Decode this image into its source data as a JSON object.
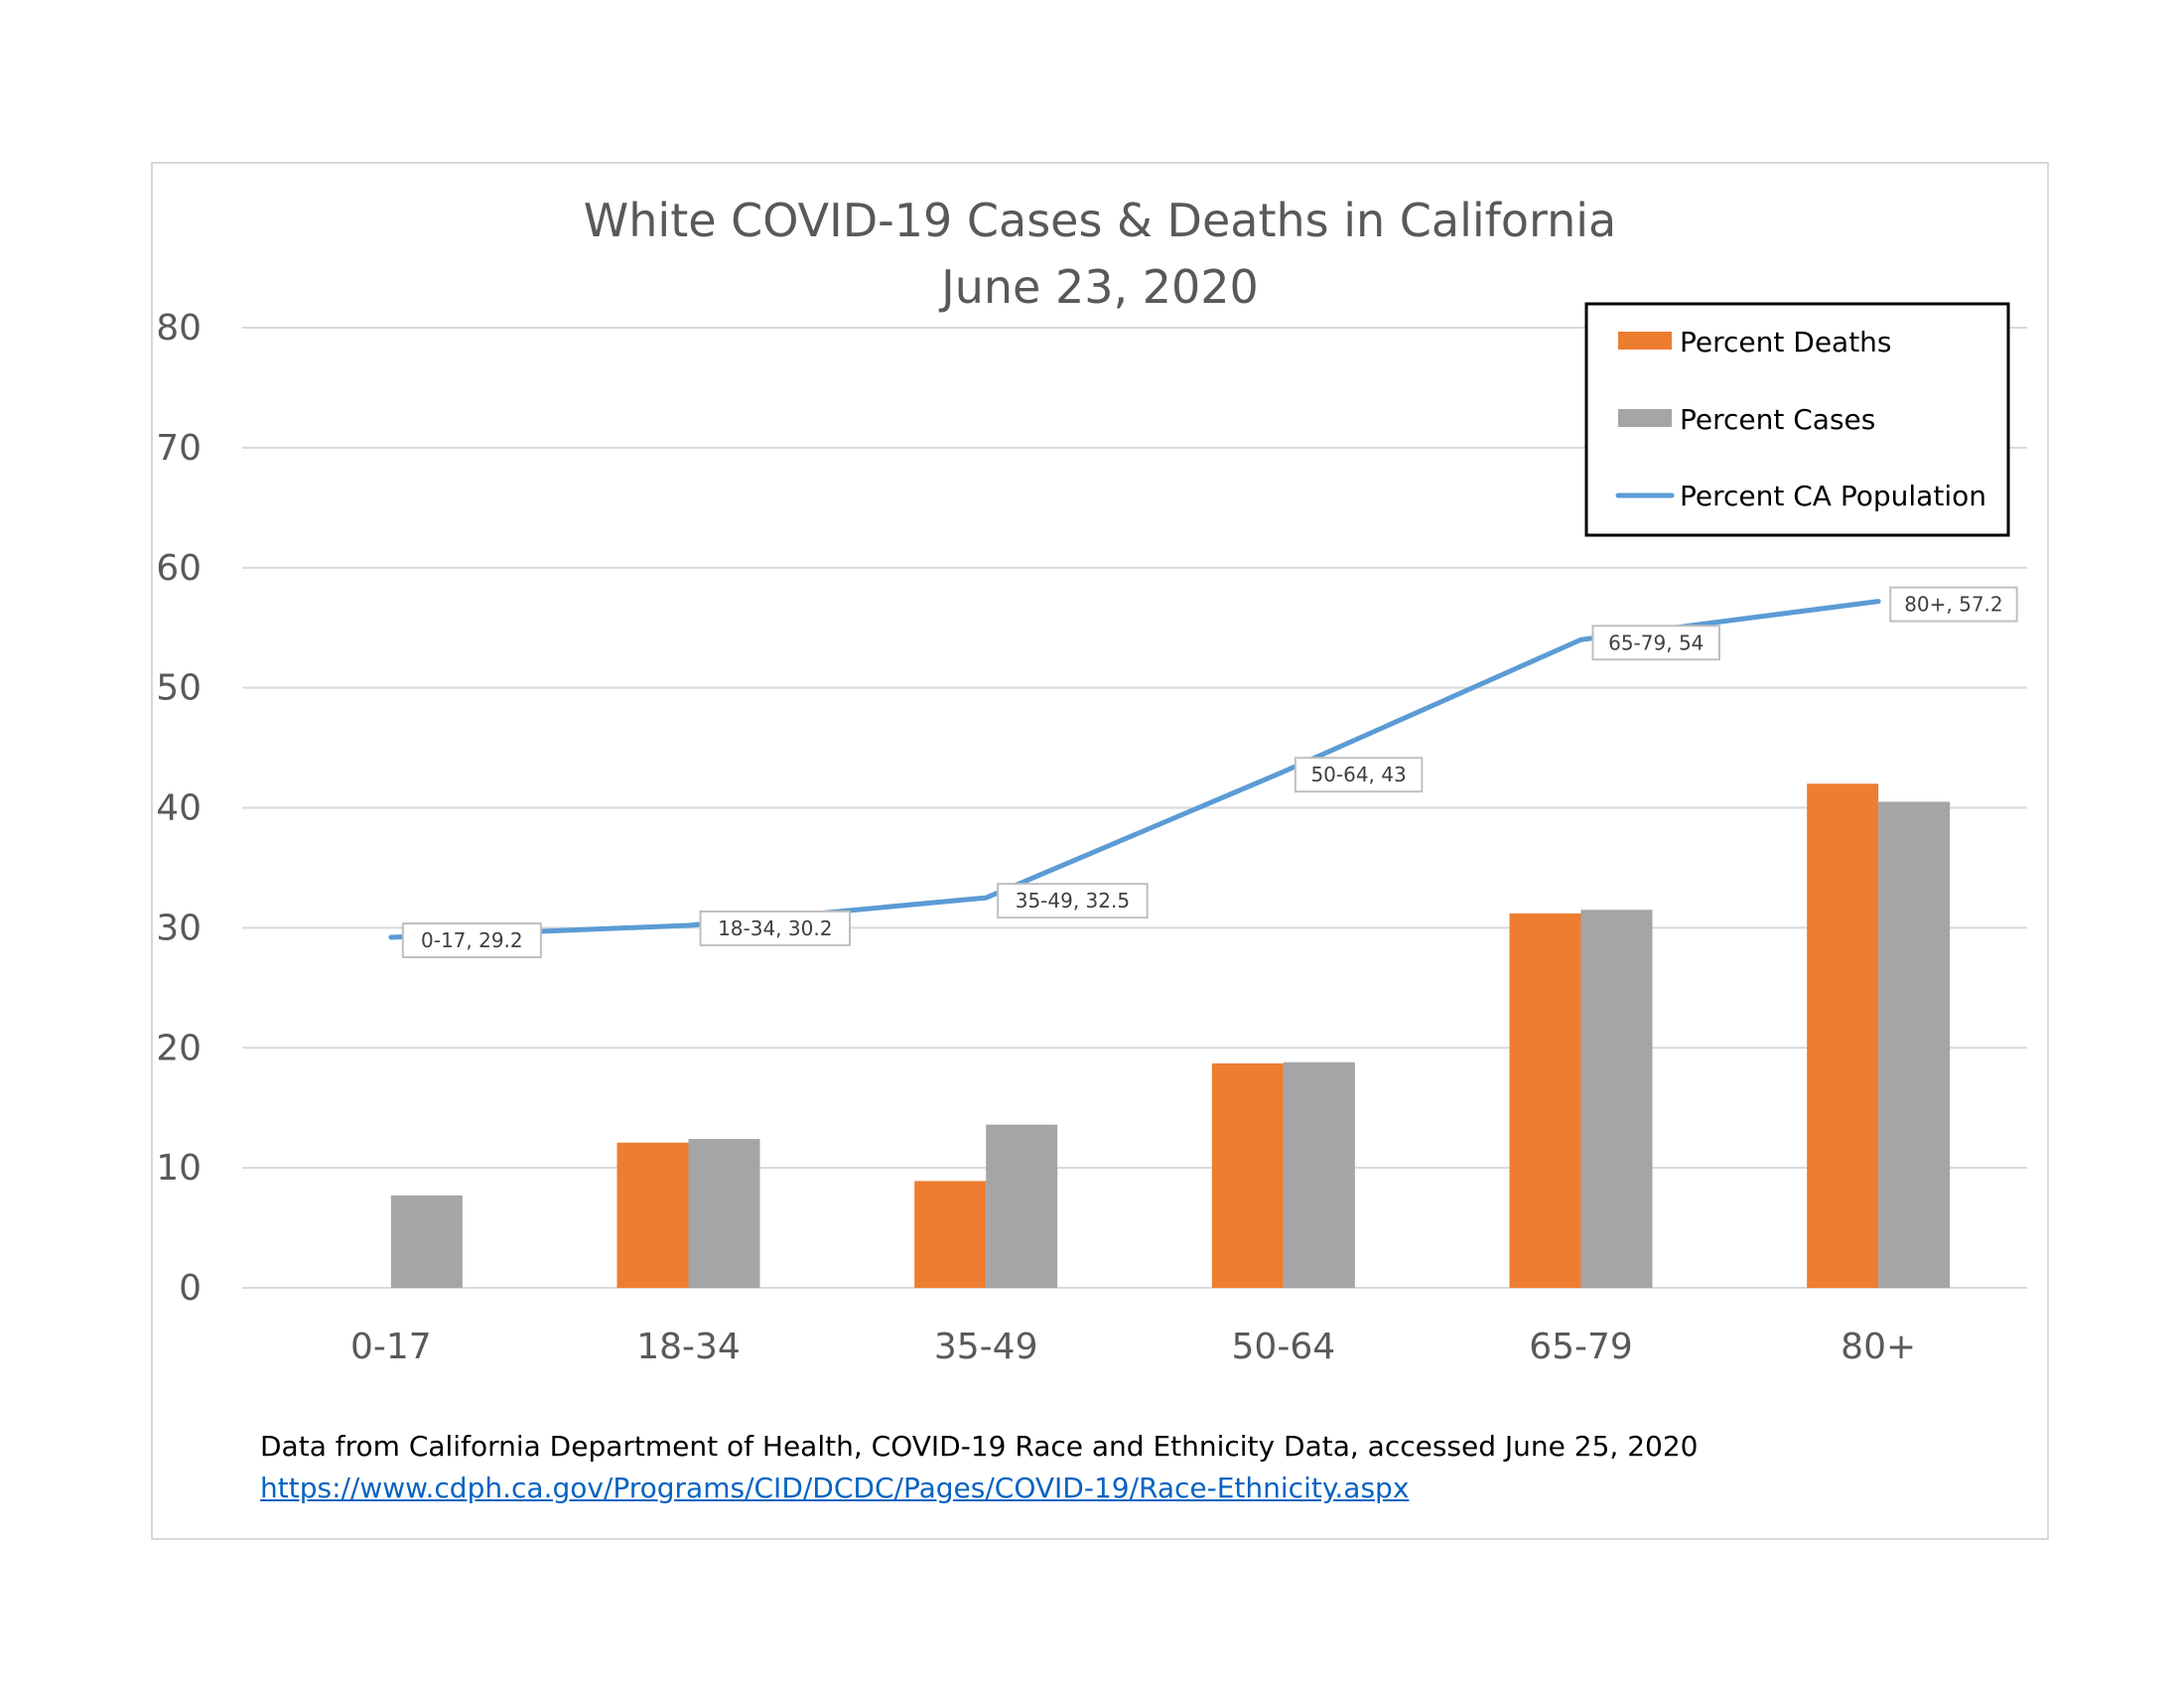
{
  "chart_data": {
    "type": "bar",
    "title": "White COVID-19 Cases & Deaths in California",
    "subtitle": "June 23, 2020",
    "categories": [
      "0-17",
      "18-34",
      "35-49",
      "50-64",
      "65-79",
      "80+"
    ],
    "y_ticks": [
      "0",
      "10",
      "20",
      "30",
      "40",
      "50",
      "60",
      "70",
      "80"
    ],
    "ylim": [
      0,
      80
    ],
    "grid": true,
    "legend_position": "top-right",
    "series": [
      {
        "name": "Percent Deaths",
        "type": "bar",
        "color": "#ed7d31",
        "values": [
          0,
          12.1,
          8.9,
          18.7,
          31.2,
          42.0
        ]
      },
      {
        "name": "Percent Cases",
        "type": "bar",
        "color": "#a5a5a5",
        "values": [
          7.7,
          12.4,
          13.6,
          18.8,
          31.5,
          40.5
        ]
      },
      {
        "name": "Percent CA Population",
        "type": "line",
        "color": "#5b9bd5",
        "values": [
          29.2,
          30.2,
          32.5,
          43,
          54,
          57.2
        ]
      }
    ],
    "data_labels": [
      "0-17, 29.2",
      "18-34, 30.2",
      "35-49, 32.5",
      "50-64, 43",
      "65-79, 54",
      "80+, 57.2"
    ]
  },
  "source": {
    "note": "Data from California Department of Health, COVID-19 Race and Ethnicity Data, accessed June 25, 2020",
    "link": "https://www.cdph.ca.gov/Programs/CID/DCDC/Pages/COVID-19/Race-Ethnicity.aspx"
  }
}
